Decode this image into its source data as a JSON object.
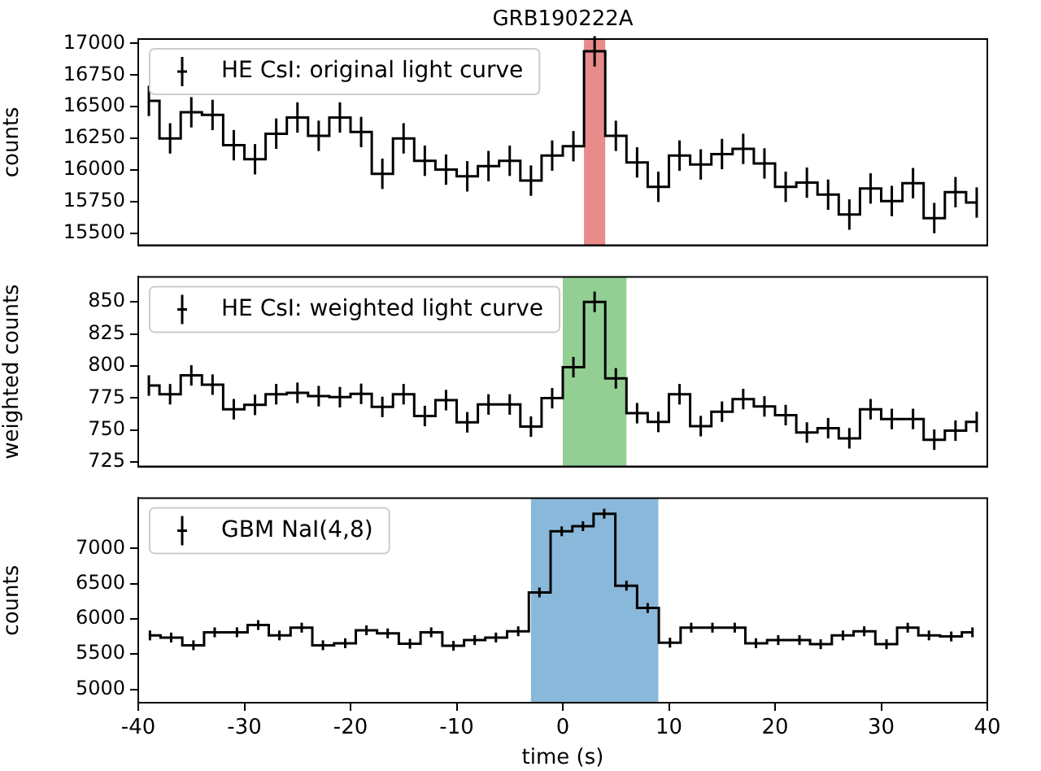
{
  "chart_data": [
    {
      "type": "step",
      "title": "GRB190222A",
      "ylabel": "counts",
      "x": [
        -39,
        -37,
        -35,
        -33,
        -31,
        -29,
        -27,
        -25,
        -23,
        -21,
        -19,
        -17,
        -15,
        -13,
        -11,
        -9,
        -7,
        -5,
        -3,
        -1,
        1,
        3,
        5,
        7,
        9,
        11,
        13,
        15,
        17,
        19,
        21,
        23,
        25,
        27,
        29,
        31,
        33,
        35,
        37,
        39
      ],
      "series": [
        {
          "name": "HE CsI: original light curve",
          "color": "#000000",
          "values": [
            16546,
            16250,
            16456,
            16435,
            16196,
            16085,
            16287,
            16415,
            16270,
            16415,
            16300,
            15970,
            16250,
            16073,
            16003,
            15950,
            16031,
            16073,
            15916,
            16114,
            16188,
            16938,
            16270,
            16060,
            15867,
            16114,
            16044,
            16126,
            16167,
            16052,
            15867,
            15900,
            15805,
            15648,
            15854,
            15755,
            15896,
            15620,
            15825,
            15743
          ],
          "errors": [
            120,
            120,
            120,
            120,
            120,
            120,
            120,
            120,
            120,
            120,
            120,
            120,
            120,
            120,
            120,
            120,
            120,
            120,
            120,
            120,
            120,
            120,
            120,
            120,
            120,
            120,
            120,
            120,
            120,
            120,
            120,
            120,
            120,
            120,
            120,
            120,
            120,
            120,
            120,
            120
          ]
        }
      ],
      "bands": [
        {
          "axis": "x",
          "from": 2,
          "to": 4,
          "color": "#e88b8b"
        }
      ],
      "xlim": [
        -40,
        40
      ],
      "xticks": [
        -40,
        -30,
        -20,
        -10,
        0,
        10,
        20,
        30,
        40
      ],
      "ylim": [
        15405,
        17035
      ],
      "yticks": [
        15500,
        15750,
        16000,
        16250,
        16500,
        16750,
        17000
      ],
      "tick_labels": "y",
      "legend": "top left"
    },
    {
      "type": "step",
      "ylabel": "weighted counts",
      "x": [
        -39,
        -37,
        -35,
        -33,
        -31,
        -29,
        -27,
        -25,
        -23,
        -21,
        -19,
        -17,
        -15,
        -13,
        -11,
        -9,
        -7,
        -5,
        -3,
        -1,
        1,
        3,
        5,
        7,
        9,
        11,
        13,
        15,
        17,
        19,
        21,
        23,
        25,
        27,
        29,
        31,
        33,
        35,
        37,
        39
      ],
      "series": [
        {
          "name": "HE CsI: weighted light curve",
          "color": "#000000",
          "values": [
            784.7,
            777.9,
            792.6,
            785.4,
            766.2,
            769.6,
            777.9,
            779,
            776.4,
            775.6,
            778.2,
            768,
            777.9,
            760.9,
            773.3,
            756,
            769.9,
            769.9,
            752.6,
            774.8,
            799,
            850,
            790.3,
            763.1,
            756.3,
            777.9,
            753,
            764.3,
            774.1,
            768.4,
            761.6,
            748,
            751.4,
            743.5,
            766.2,
            758.6,
            758.6,
            742.4,
            749.5,
            756.3
          ],
          "errors": [
            8,
            8,
            8,
            8,
            8,
            8,
            8,
            8,
            8,
            8,
            8,
            8,
            8,
            8,
            8,
            8,
            8,
            8,
            8,
            8,
            8,
            8,
            8,
            8,
            8,
            8,
            8,
            8,
            8,
            8,
            8,
            8,
            8,
            8,
            8,
            8,
            8,
            8,
            8,
            8
          ]
        }
      ],
      "bands": [
        {
          "axis": "x",
          "from": 0,
          "to": 6,
          "color": "#93cf93"
        }
      ],
      "xlim": [
        -40,
        40
      ],
      "xticks": [
        -40,
        -30,
        -20,
        -10,
        0,
        10,
        20,
        30,
        40
      ],
      "ylim": [
        721.5,
        869.5
      ],
      "yticks": [
        725,
        750,
        775,
        800,
        825,
        850
      ],
      "tick_labels": "y",
      "legend": "top left"
    },
    {
      "type": "step",
      "xlabel": "time (s)",
      "ylabel": "counts",
      "x": [
        -38.9,
        -36.9,
        -34.8,
        -32.8,
        -30.7,
        -28.7,
        -26.7,
        -24.6,
        -22.6,
        -20.5,
        -18.5,
        -16.5,
        -14.4,
        -12.4,
        -10.3,
        -8.3,
        -6.3,
        -4.2,
        -2.2,
        -0.1,
        1.9,
        3.9,
        6.0,
        8.0,
        10.1,
        12.1,
        14.1,
        16.2,
        18.2,
        20.3,
        22.3,
        24.3,
        26.4,
        28.4,
        30.5,
        32.5,
        34.5,
        36.6,
        38.6
      ],
      "series": [
        {
          "name": "GBM NaI(4,8)",
          "color": "#000000",
          "values": [
            5765,
            5735,
            5625,
            5809,
            5809,
            5912,
            5765,
            5875,
            5625,
            5654,
            5838,
            5794,
            5647,
            5809,
            5618,
            5699,
            5735,
            5824,
            6375,
            7243,
            7316,
            7493,
            6471,
            6154,
            5662,
            5875,
            5875,
            5875,
            5654,
            5699,
            5699,
            5640,
            5765,
            5824,
            5640,
            5875,
            5765,
            5750,
            5809
          ],
          "errors": [
            70,
            70,
            70,
            70,
            70,
            70,
            70,
            70,
            70,
            70,
            70,
            70,
            70,
            70,
            70,
            70,
            70,
            70,
            70,
            70,
            70,
            70,
            70,
            70,
            70,
            70,
            70,
            70,
            70,
            70,
            70,
            70,
            70,
            70,
            70,
            70,
            70,
            70,
            70
          ]
        }
      ],
      "bands": [
        {
          "axis": "x",
          "from": -3,
          "to": 9,
          "color": "#8ab8da"
        }
      ],
      "xlim": [
        -40,
        40
      ],
      "xticks": [
        -40,
        -30,
        -20,
        -10,
        0,
        10,
        20,
        30,
        40
      ],
      "ylim": [
        4810,
        7715
      ],
      "yticks": [
        5000,
        5500,
        6000,
        6500,
        7000
      ],
      "legend": "top left"
    }
  ]
}
